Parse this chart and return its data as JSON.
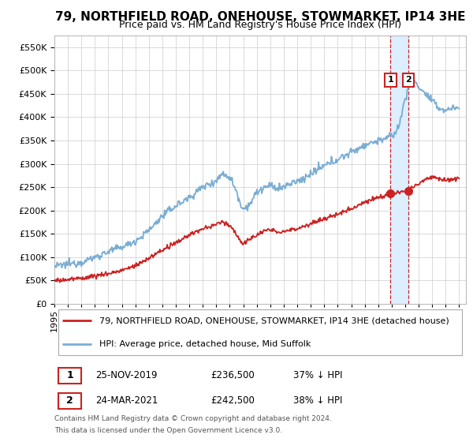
{
  "title": "79, NORTHFIELD ROAD, ONEHOUSE, STOWMARKET, IP14 3HE",
  "subtitle": "Price paid vs. HM Land Registry's House Price Index (HPI)",
  "ylim": [
    0,
    575000
  ],
  "yticks": [
    0,
    50000,
    100000,
    150000,
    200000,
    250000,
    300000,
    350000,
    400000,
    450000,
    500000,
    550000
  ],
  "legend_line1": "79, NORTHFIELD ROAD, ONEHOUSE, STOWMARKET, IP14 3HE (detached house)",
  "legend_line2": "HPI: Average price, detached house, Mid Suffolk",
  "sale1_label": "1",
  "sale1_date": "25-NOV-2019",
  "sale1_price": "£236,500",
  "sale1_pct": "37% ↓ HPI",
  "sale1_year": 2019.92,
  "sale1_value": 236500,
  "sale2_label": "2",
  "sale2_date": "24-MAR-2021",
  "sale2_price": "£242,500",
  "sale2_pct": "38% ↓ HPI",
  "sale2_year": 2021.25,
  "sale2_value": 242500,
  "footnote1": "Contains HM Land Registry data © Crown copyright and database right 2024.",
  "footnote2": "This data is licensed under the Open Government Licence v3.0.",
  "hpi_color": "#7aadd4",
  "price_color": "#cc2222",
  "highlight_color": "#ddeeff",
  "background_color": "#ffffff",
  "grid_color": "#cccccc",
  "title_fontsize": 11,
  "subtitle_fontsize": 9,
  "tick_fontsize": 8
}
